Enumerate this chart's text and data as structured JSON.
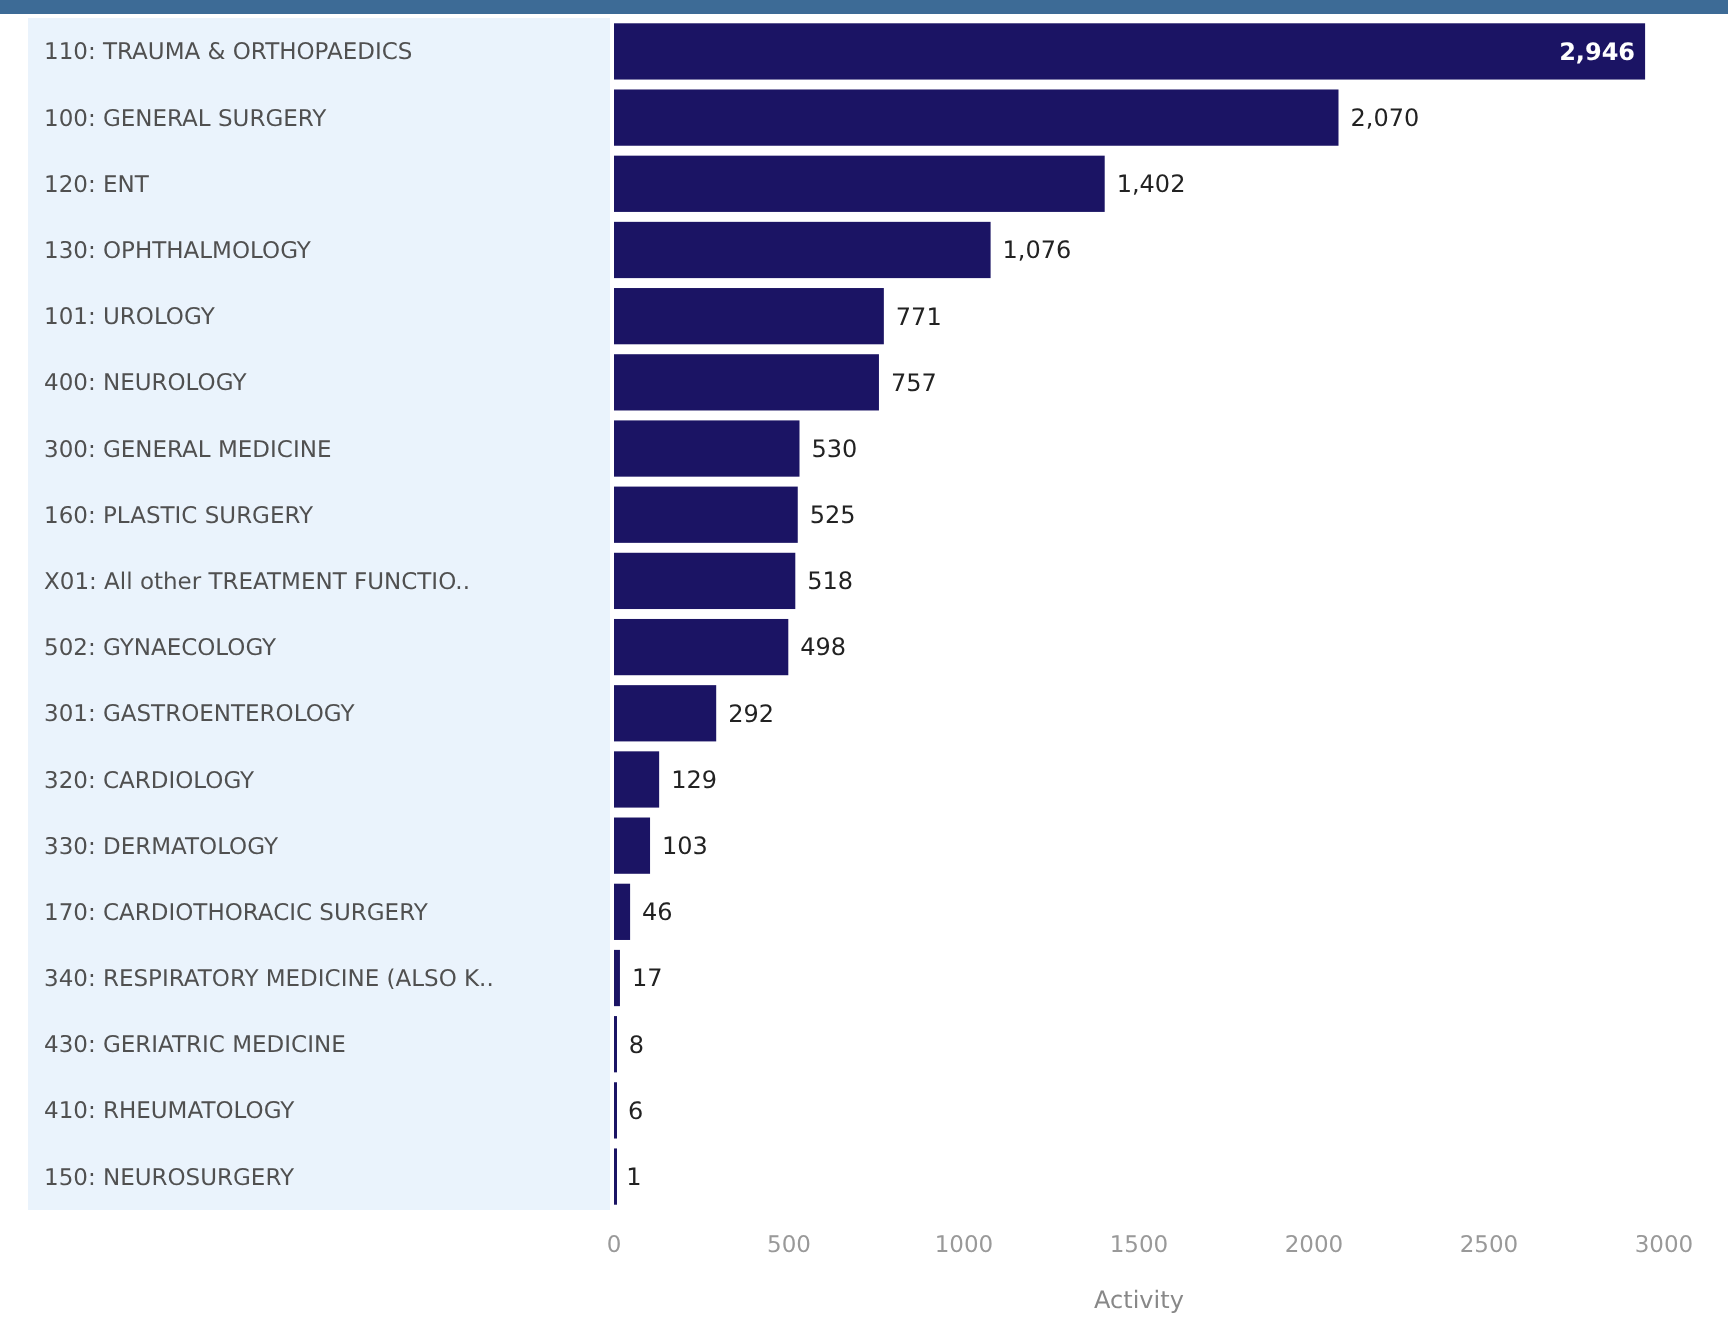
{
  "chart_data": {
    "type": "bar",
    "orientation": "horizontal",
    "xlabel": "Activity",
    "categories": [
      "110: TRAUMA & ORTHOPAEDICS",
      "100: GENERAL SURGERY",
      "120: ENT",
      "130: OPHTHALMOLOGY",
      "101: UROLOGY",
      "400: NEUROLOGY",
      "300: GENERAL MEDICINE",
      "160: PLASTIC SURGERY",
      "X01: All other TREATMENT FUNCTIO..",
      "502: GYNAECOLOGY",
      "301: GASTROENTEROLOGY",
      "320: CARDIOLOGY",
      "330: DERMATOLOGY",
      "170: CARDIOTHORACIC SURGERY",
      "340: RESPIRATORY MEDICINE (ALSO K..",
      "430: GERIATRIC MEDICINE",
      "410: RHEUMATOLOGY",
      "150: NEUROSURGERY"
    ],
    "values": [
      2946,
      2070,
      1402,
      1076,
      771,
      757,
      530,
      525,
      518,
      498,
      292,
      129,
      103,
      46,
      17,
      8,
      6,
      1
    ],
    "value_labels": [
      "2,946",
      "2,070",
      "1,402",
      "1,076",
      "771",
      "757",
      "530",
      "525",
      "518",
      "498",
      "292",
      "129",
      "103",
      "46",
      "17",
      "8",
      "6",
      "1"
    ],
    "color": "#1b1464",
    "xlim": [
      0,
      3000
    ],
    "xticks": [
      0,
      500,
      1000,
      1500,
      2000,
      2500,
      3000
    ],
    "grid": false
  }
}
